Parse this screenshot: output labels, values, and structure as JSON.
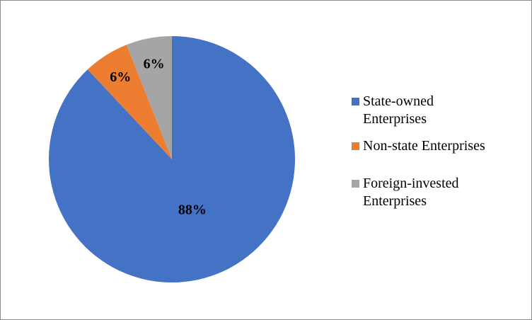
{
  "chart_data": {
    "type": "pie",
    "categories": [
      "State-owned Enterprises",
      "Non-state Enterprises",
      "Foreign-invested Enterprises"
    ],
    "values": [
      88,
      6,
      6
    ],
    "value_labels": [
      "88%",
      "6%",
      "6%"
    ],
    "colors": [
      "#4472c4",
      "#ed7d31",
      "#a5a5a5"
    ],
    "legend": "right"
  }
}
